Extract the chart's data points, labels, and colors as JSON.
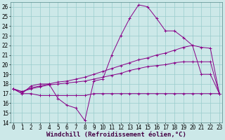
{
  "xlabel": "Windchill (Refroidissement éolien,°C)",
  "bg_color": "#cce8e8",
  "line_color": "#880088",
  "line1_y": [
    17.5,
    17.0,
    17.8,
    18.0,
    18.0,
    16.5,
    15.8,
    15.5,
    14.2,
    18.3,
    18.5,
    21.0,
    23.0,
    24.8,
    26.2,
    26.0,
    24.8,
    23.5,
    23.5,
    22.8,
    22.0,
    19.0,
    19.0,
    17.0
  ],
  "line2_y": [
    17.5,
    17.2,
    17.6,
    17.8,
    18.0,
    18.2,
    18.3,
    18.5,
    18.7,
    19.0,
    19.3,
    19.6,
    19.9,
    20.2,
    20.5,
    20.7,
    21.0,
    21.2,
    21.5,
    21.8,
    22.0,
    21.8,
    21.7,
    17.0
  ],
  "line3_y": [
    17.5,
    17.2,
    17.5,
    17.7,
    17.9,
    18.0,
    18.1,
    18.2,
    18.3,
    18.5,
    18.7,
    18.9,
    19.1,
    19.4,
    19.6,
    19.8,
    19.9,
    20.0,
    20.2,
    20.3,
    20.3,
    20.3,
    20.3,
    17.0
  ],
  "line4_y": [
    17.5,
    17.0,
    17.0,
    16.8,
    16.8,
    16.8,
    16.8,
    16.8,
    16.8,
    17.0,
    17.0,
    17.0,
    17.0,
    17.0,
    17.0,
    17.0,
    17.0,
    17.0,
    17.0,
    17.0,
    17.0,
    17.0,
    17.0,
    17.0
  ],
  "grid_color": "#99cccc",
  "xlabel_fontsize": 6.5,
  "tick_fontsize": 5.5
}
